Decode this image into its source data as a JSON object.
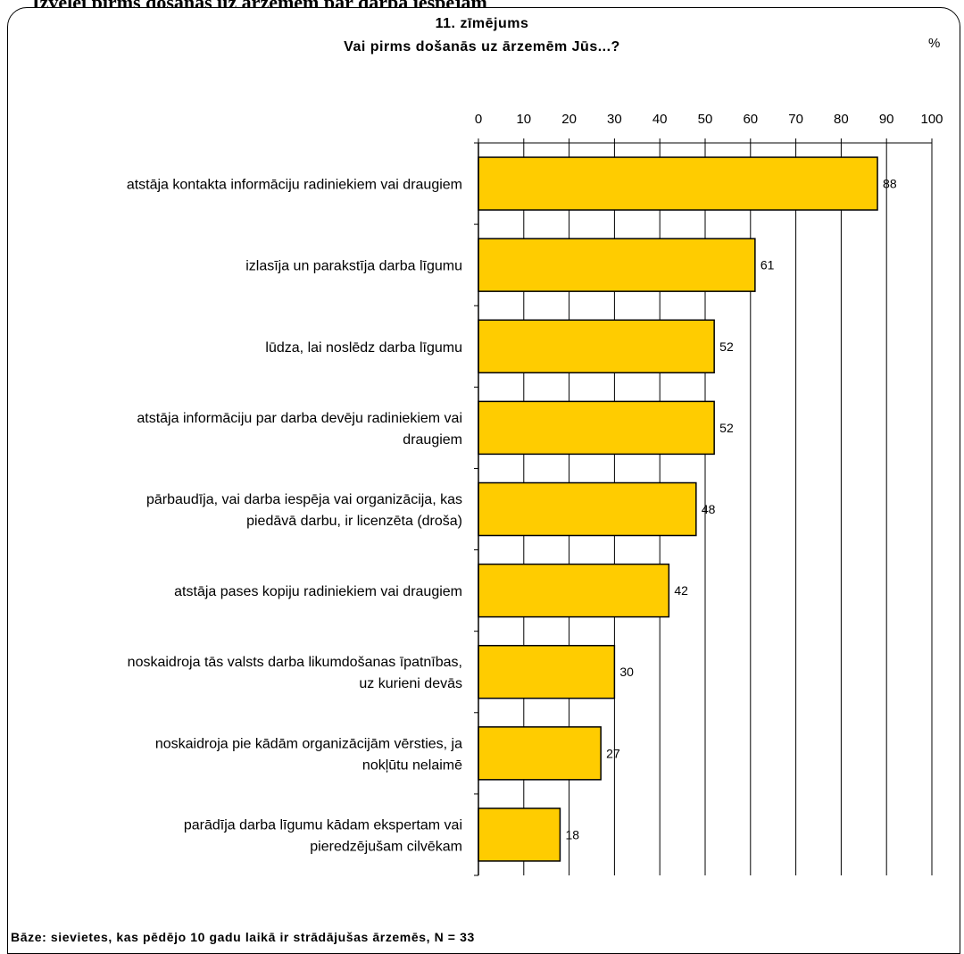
{
  "page": {
    "heading_fragment": "Izvēlei pirms došanās uz ārzemēm par darba iespējām"
  },
  "chart_data": {
    "type": "bar",
    "orientation": "horizontal",
    "title": "11. zīmējums",
    "subtitle": "Vai pirms došanās uz ārzemēm Jūs...?",
    "unit": "%",
    "xlim": [
      0,
      100
    ],
    "ticks": [
      0,
      10,
      20,
      30,
      40,
      50,
      60,
      70,
      80,
      90,
      100
    ],
    "tick_labels": [
      "0",
      "10",
      "20",
      "30",
      "40",
      "50",
      "60",
      "70",
      "80",
      "90",
      "100"
    ],
    "axis_position": "top",
    "grid": true,
    "categories": [
      [
        "atstāja kontakta informāciju radiniekiem vai draugiem"
      ],
      [
        "izlasīja un parakstīja darba līgumu"
      ],
      [
        "lūdza, lai noslēdz darba līgumu"
      ],
      [
        "atstāja informāciju par darba devēju radiniekiem vai",
        "draugiem"
      ],
      [
        "pārbaudīja, vai darba iespēja vai organizācija, kas",
        "piedāvā darbu, ir licenzēta (droša)"
      ],
      [
        "atstāja pases kopiju radiniekiem vai draugiem"
      ],
      [
        "noskaidroja tās valsts darba likumdošanas īpatnības,",
        "uz kurieni devās"
      ],
      [
        "noskaidroja pie kādām organizācijām vērsties, ja",
        "nokļūtu nelaimē"
      ],
      [
        "parādīja darba līgumu kādam ekspertam vai",
        "pieredzējušam cilvēkam"
      ]
    ],
    "values": [
      88,
      61,
      52,
      52,
      48,
      42,
      30,
      27,
      18
    ],
    "data_labels": [
      "88",
      "61",
      "52",
      "52",
      "48",
      "42",
      "30",
      "27",
      "18"
    ],
    "bar_color": "#ffcc00",
    "base_note": "Bāze: sievietes, kas pēdējo 10 gadu laikā ir strādājušas ārzemēs, N = 33"
  }
}
